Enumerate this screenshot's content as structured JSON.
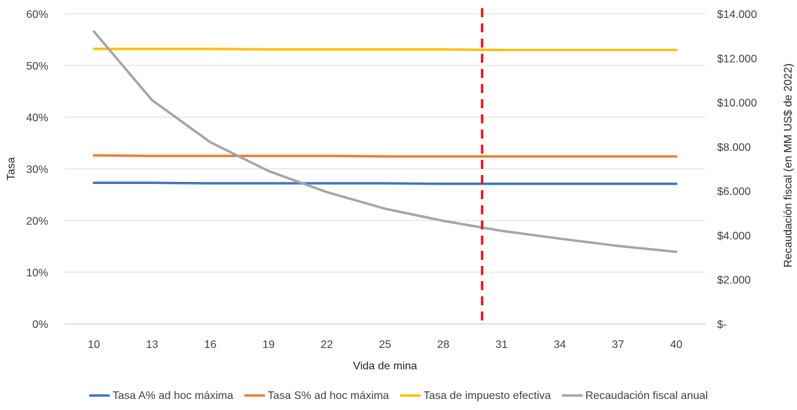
{
  "chart_data": {
    "type": "line",
    "xlabel": "Vida de mina",
    "ylabel_left": "Tasa",
    "ylabel_right": "Recaudación fiscal (en MM US$ de 2022)",
    "x": [
      10,
      13,
      16,
      19,
      22,
      25,
      28,
      31,
      34,
      37,
      40
    ],
    "x_tick_labels": [
      "10",
      "13",
      "16",
      "19",
      "22",
      "25",
      "28",
      "31",
      "34",
      "37",
      "40"
    ],
    "y_left_range": [
      0,
      0.6
    ],
    "y_left_tick_values": [
      0,
      0.1,
      0.2,
      0.3,
      0.4,
      0.5,
      0.6
    ],
    "y_left_tick_labels": [
      "0%",
      "10%",
      "20%",
      "30%",
      "40%",
      "50%",
      "60%"
    ],
    "y_right_range": [
      0,
      14000
    ],
    "y_right_tick_values": [
      0,
      2000,
      4000,
      6000,
      8000,
      10000,
      12000,
      14000
    ],
    "y_right_tick_labels": [
      "$-",
      "$2.000",
      "$4.000",
      "$6.000",
      "$8.000",
      "$10.000",
      "$12.000",
      "$14.000"
    ],
    "grid": true,
    "legend_position": "bottom",
    "reference_line": {
      "x": 30,
      "color": "#e8141b",
      "style": "dashed"
    },
    "series": [
      {
        "name": "Tasa A% ad hoc máxima",
        "axis": "left",
        "color": "#4472c4",
        "values": [
          0.273,
          0.273,
          0.272,
          0.272,
          0.272,
          0.272,
          0.271,
          0.271,
          0.271,
          0.271,
          0.271
        ]
      },
      {
        "name": "Tasa S% ad hoc máxima",
        "axis": "left",
        "color": "#ed7d31",
        "values": [
          0.326,
          0.325,
          0.325,
          0.325,
          0.325,
          0.324,
          0.324,
          0.324,
          0.324,
          0.324,
          0.324
        ]
      },
      {
        "name": "Tasa de impuesto efectiva",
        "axis": "left",
        "color": "#ffc000",
        "values": [
          0.532,
          0.532,
          0.532,
          0.531,
          0.531,
          0.531,
          0.531,
          0.53,
          0.53,
          0.53,
          0.53
        ]
      },
      {
        "name": "Recaudación fiscal anual",
        "axis": "right",
        "color": "#a5a5a5",
        "values": [
          13200,
          10100,
          8200,
          6900,
          5950,
          5200,
          4650,
          4200,
          3850,
          3520,
          3250
        ]
      }
    ]
  }
}
